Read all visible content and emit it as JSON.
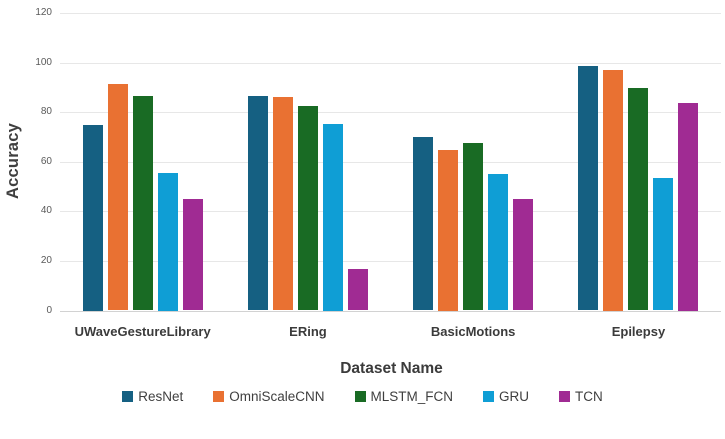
{
  "chart_data": {
    "type": "bar",
    "title": "",
    "xlabel": "Dataset Name",
    "ylabel": "Accuracy",
    "ylim": [
      0,
      120
    ],
    "yticks": [
      0,
      20,
      40,
      60,
      80,
      100,
      120
    ],
    "grid": true,
    "legend_position": "bottom",
    "categories": [
      "UWaveGestureLibrary",
      "ERing",
      "BasicMotions",
      "Epilepsy"
    ],
    "series": [
      {
        "name": "ResNet",
        "color": "#156082",
        "values": [
          75.0,
          86.7,
          70.0,
          98.6
        ]
      },
      {
        "name": "OmniScaleCNN",
        "color": "#E97132",
        "values": [
          91.5,
          86.3,
          65.0,
          97.1
        ]
      },
      {
        "name": "MLSTM_FCN",
        "color": "#196B24",
        "values": [
          86.5,
          82.6,
          67.5,
          90.0
        ]
      },
      {
        "name": "GRU",
        "color": "#0F9ED5",
        "values": [
          55.5,
          75.5,
          55.0,
          53.6
        ]
      },
      {
        "name": "TCN",
        "color": "#A02B93",
        "values": [
          45.0,
          16.7,
          45.0,
          84.0
        ]
      }
    ],
    "colors": {
      "background": "#ffffff",
      "gridline": "#e7e7e7",
      "axis_line": "#d2d2d2",
      "tick_text": "#595959",
      "label_text": "#3b3b3b"
    }
  }
}
